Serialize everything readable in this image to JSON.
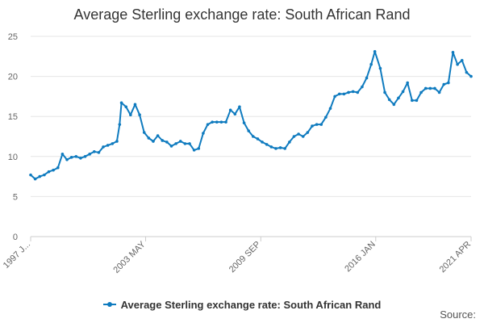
{
  "chart_data": {
    "type": "line",
    "title": "Average Sterling exchange rate: South African Rand",
    "xlabel": "",
    "ylabel": "",
    "ylim": [
      0,
      25
    ],
    "y_ticks": [
      0,
      5,
      10,
      15,
      20,
      25
    ],
    "x_tick_labels": [
      "1997 J...",
      "2003 MAY",
      "2009 SEP",
      "2016 JAN",
      "2021 APR"
    ],
    "x_tick_dates": [
      1997.0,
      2003.33,
      2009.67,
      2016.0,
      2021.25
    ],
    "x_range": [
      1997.0,
      2021.25
    ],
    "series": [
      {
        "name": "Average Sterling exchange rate: South African Rand",
        "color": "#0f7bbf",
        "x": [
          1997.0,
          1997.25,
          1997.5,
          1997.75,
          1998.0,
          1998.25,
          1998.5,
          1998.75,
          1999.0,
          1999.25,
          1999.5,
          1999.75,
          2000.0,
          2000.25,
          2000.5,
          2000.75,
          2001.0,
          2001.25,
          2001.5,
          2001.75,
          2001.9,
          2002.0,
          2002.25,
          2002.5,
          2002.75,
          2003.0,
          2003.25,
          2003.5,
          2003.75,
          2004.0,
          2004.25,
          2004.5,
          2004.75,
          2005.0,
          2005.25,
          2005.5,
          2005.75,
          2006.0,
          2006.25,
          2006.5,
          2006.75,
          2007.0,
          2007.25,
          2007.5,
          2007.75,
          2008.0,
          2008.25,
          2008.5,
          2008.75,
          2009.0,
          2009.25,
          2009.5,
          2009.75,
          2010.0,
          2010.25,
          2010.5,
          2010.75,
          2011.0,
          2011.25,
          2011.5,
          2011.75,
          2012.0,
          2012.25,
          2012.5,
          2012.75,
          2013.0,
          2013.25,
          2013.5,
          2013.75,
          2014.0,
          2014.25,
          2014.5,
          2014.75,
          2015.0,
          2015.25,
          2015.5,
          2015.75,
          2015.95,
          2016.25,
          2016.5,
          2016.75,
          2017.0,
          2017.25,
          2017.5,
          2017.75,
          2018.0,
          2018.25,
          2018.5,
          2018.75,
          2019.0,
          2019.25,
          2019.5,
          2019.75,
          2020.0,
          2020.25,
          2020.5,
          2020.75,
          2021.0,
          2021.25
        ],
        "values": [
          7.7,
          7.2,
          7.5,
          7.7,
          8.1,
          8.3,
          8.6,
          10.3,
          9.6,
          9.9,
          10.0,
          9.8,
          10.0,
          10.3,
          10.6,
          10.5,
          11.2,
          11.4,
          11.6,
          11.9,
          14.0,
          16.7,
          16.2,
          15.2,
          16.5,
          15.2,
          13.0,
          12.3,
          11.9,
          12.6,
          12.0,
          11.8,
          11.3,
          11.6,
          11.9,
          11.6,
          11.6,
          10.8,
          11.0,
          12.9,
          14.0,
          14.3,
          14.3,
          14.3,
          14.3,
          15.8,
          15.3,
          16.2,
          14.2,
          13.2,
          12.5,
          12.2,
          11.8,
          11.5,
          11.2,
          11.0,
          11.1,
          11.0,
          11.8,
          12.5,
          12.8,
          12.5,
          13.0,
          13.8,
          14.0,
          14.0,
          14.9,
          16.0,
          17.5,
          17.8,
          17.8,
          18.0,
          18.1,
          18.0,
          18.7,
          19.8,
          21.5,
          23.1,
          21.0,
          18.0,
          17.1,
          16.5,
          17.3,
          18.1,
          19.2,
          17.0,
          17.0,
          18.0,
          18.5,
          18.5,
          18.5,
          18.0,
          19.0,
          19.2,
          23.0,
          21.5,
          22.0,
          20.5,
          20.0
        ]
      }
    ]
  },
  "legend": {
    "label": "Average Sterling exchange rate: South African Rand"
  },
  "source": {
    "label": "Source:"
  }
}
